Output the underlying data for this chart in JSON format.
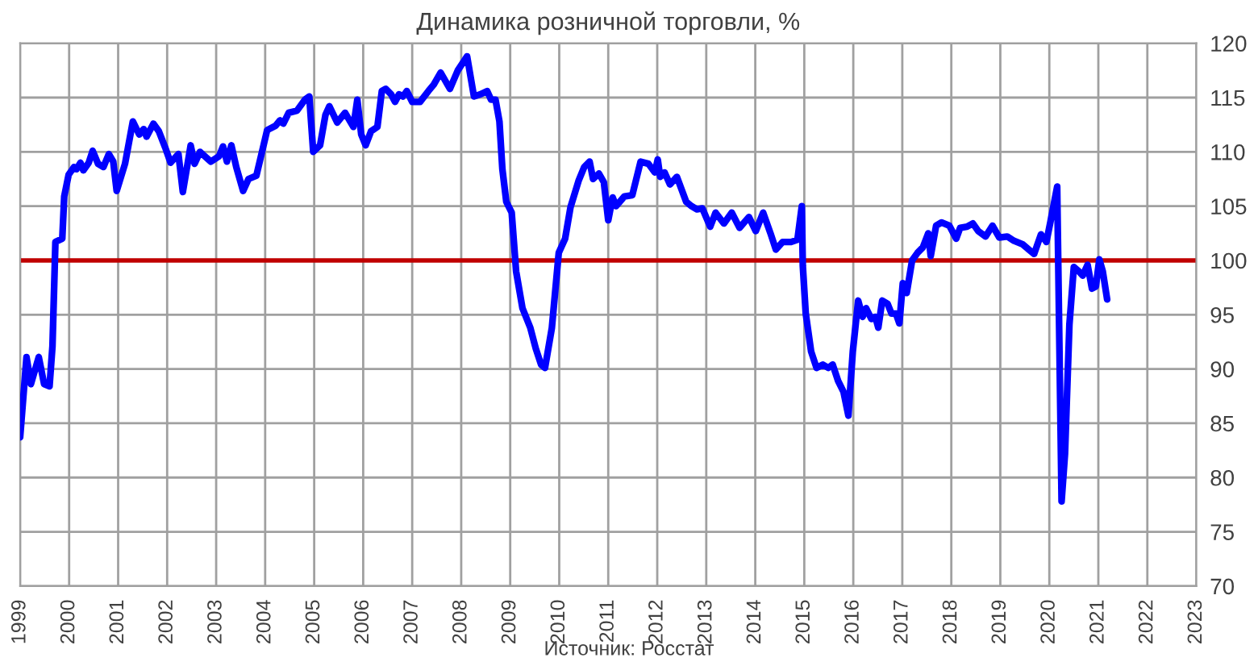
{
  "chart_data": {
    "type": "line",
    "title": "Динамика розничной торговли, %",
    "annotations": [
      "Источник: Росстат"
    ],
    "series": [
      {
        "color": "#0000ff",
        "x": [
          1999.0,
          1999.13,
          1999.22,
          1999.38,
          1999.49,
          1999.6,
          1999.66,
          1999.72,
          1999.86,
          1999.9,
          1999.99,
          2000.1,
          2000.15,
          2000.23,
          2000.29,
          2000.4,
          2000.48,
          2000.59,
          2000.7,
          2000.81,
          2000.9,
          2000.97,
          2001.14,
          2001.3,
          2001.43,
          2001.52,
          2001.58,
          2001.72,
          2001.83,
          2001.96,
          2002.07,
          2002.23,
          2002.32,
          2002.48,
          2002.56,
          2002.67,
          2002.89,
          2003.06,
          2003.14,
          2003.22,
          2003.31,
          2003.41,
          2003.55,
          2003.66,
          2003.82,
          2003.93,
          2004.04,
          2004.21,
          2004.3,
          2004.37,
          2004.48,
          2004.65,
          2004.81,
          2004.9,
          2004.98,
          2005.12,
          2005.23,
          2005.31,
          2005.47,
          2005.63,
          2005.8,
          2005.88,
          2005.96,
          2006.05,
          2006.16,
          2006.29,
          2006.38,
          2006.46,
          2006.57,
          2006.65,
          2006.73,
          2006.81,
          2006.89,
          2007.0,
          2007.16,
          2007.33,
          2007.44,
          2007.58,
          2007.77,
          2007.93,
          2008.12,
          2008.26,
          2008.39,
          2008.53,
          2008.61,
          2008.7,
          2008.78,
          2008.84,
          2008.92,
          2009.03,
          2009.12,
          2009.25,
          2009.41,
          2009.52,
          2009.63,
          2009.71,
          2009.85,
          2009.99,
          2010.12,
          2010.23,
          2010.4,
          2010.51,
          2010.62,
          2010.69,
          2010.81,
          2010.91,
          2011.0,
          2011.09,
          2011.16,
          2011.33,
          2011.49,
          2011.66,
          2011.82,
          2011.95,
          2012.01,
          2012.06,
          2012.15,
          2012.26,
          2012.4,
          2012.59,
          2012.7,
          2012.81,
          2012.92,
          2013.08,
          2013.19,
          2013.36,
          2013.52,
          2013.68,
          2013.87,
          2014.01,
          2014.16,
          2014.31,
          2014.42,
          2014.56,
          2014.73,
          2014.86,
          2014.95,
          2014.97,
          2015.03,
          2015.14,
          2015.25,
          2015.38,
          2015.49,
          2015.58,
          2015.69,
          2015.8,
          2015.9,
          2015.99,
          2016.1,
          2016.19,
          2016.26,
          2016.37,
          2016.45,
          2016.51,
          2016.59,
          2016.7,
          2016.78,
          2016.87,
          2016.94,
          2017.01,
          2017.09,
          2017.2,
          2017.31,
          2017.42,
          2017.53,
          2017.58,
          2017.69,
          2017.8,
          2017.96,
          2018.1,
          2018.18,
          2018.32,
          2018.44,
          2018.55,
          2018.7,
          2018.84,
          2018.98,
          2019.14,
          2019.28,
          2019.45,
          2019.58,
          2019.69,
          2019.83,
          2019.94,
          2020.02,
          2020.16,
          2020.25,
          2020.32,
          2020.41,
          2020.5,
          2020.6,
          2020.68,
          2020.78,
          2020.87,
          2020.95,
          2021.02,
          2021.09,
          2021.18
        ],
        "values": [
          83.7,
          91.1,
          88.6,
          91.1,
          88.6,
          88.4,
          92.1,
          101.7,
          102.0,
          105.9,
          107.9,
          108.6,
          108.4,
          109.0,
          108.3,
          109.0,
          110.1,
          108.9,
          108.6,
          109.8,
          109.1,
          106.4,
          108.9,
          112.8,
          111.6,
          112.1,
          111.4,
          112.6,
          111.9,
          110.4,
          109.0,
          109.8,
          106.3,
          110.6,
          108.9,
          110.0,
          109.1,
          109.6,
          110.5,
          109.1,
          110.6,
          108.6,
          106.4,
          107.5,
          107.8,
          109.9,
          112.0,
          112.4,
          112.9,
          112.6,
          113.6,
          113.8,
          114.8,
          115.1,
          110.0,
          110.6,
          113.4,
          114.2,
          112.7,
          113.6,
          112.3,
          114.8,
          111.6,
          110.6,
          111.9,
          112.3,
          115.6,
          115.8,
          115.3,
          114.6,
          115.3,
          115.1,
          115.6,
          114.6,
          114.6,
          115.6,
          116.2,
          117.3,
          115.8,
          117.5,
          118.8,
          115.1,
          115.3,
          115.6,
          114.8,
          114.8,
          112.8,
          108.4,
          105.4,
          104.4,
          99.0,
          95.6,
          93.8,
          91.9,
          90.4,
          90.1,
          93.8,
          100.7,
          102.0,
          104.9,
          107.4,
          108.6,
          109.1,
          107.5,
          108.0,
          107.2,
          103.7,
          105.8,
          105.0,
          105.9,
          106.0,
          109.1,
          108.9,
          108.1,
          109.3,
          107.7,
          108.1,
          107.0,
          107.7,
          105.4,
          105.0,
          104.7,
          104.8,
          103.1,
          104.4,
          103.4,
          104.4,
          103.0,
          104.0,
          102.7,
          104.4,
          102.5,
          101.0,
          101.7,
          101.7,
          101.9,
          105.0,
          99.5,
          95.1,
          91.6,
          90.1,
          90.4,
          90.1,
          90.4,
          88.9,
          87.9,
          85.7,
          91.6,
          96.3,
          94.8,
          95.6,
          94.6,
          94.8,
          93.8,
          96.3,
          96.0,
          95.1,
          95.1,
          94.2,
          97.9,
          97.0,
          100.0,
          100.7,
          101.2,
          102.5,
          100.4,
          103.2,
          103.5,
          103.2,
          102.0,
          103.0,
          103.1,
          103.4,
          102.7,
          102.2,
          103.2,
          102.1,
          102.2,
          101.8,
          101.5,
          101.0,
          100.6,
          102.4,
          101.7,
          103.5,
          106.8,
          77.8,
          82.2,
          94.1,
          99.4,
          99.0,
          98.6,
          99.6,
          97.4,
          97.6,
          100.1,
          99.0,
          96.4
        ]
      }
    ],
    "ref_lines": [
      {
        "axis": "y",
        "value": 100,
        "color": "#c00000"
      }
    ],
    "xlim": [
      1999,
      2023
    ],
    "xticks": [
      1999,
      2000,
      2001,
      2002,
      2003,
      2004,
      2005,
      2006,
      2007,
      2008,
      2009,
      2010,
      2011,
      2012,
      2013,
      2014,
      2015,
      2016,
      2017,
      2018,
      2019,
      2020,
      2021,
      2022,
      2023
    ],
    "ylim": [
      70,
      120
    ],
    "yticks": [
      70,
      75,
      80,
      85,
      90,
      95,
      100,
      105,
      110,
      115,
      120
    ],
    "grid": true,
    "legend": false,
    "marker": "none",
    "line_style": "solid"
  }
}
